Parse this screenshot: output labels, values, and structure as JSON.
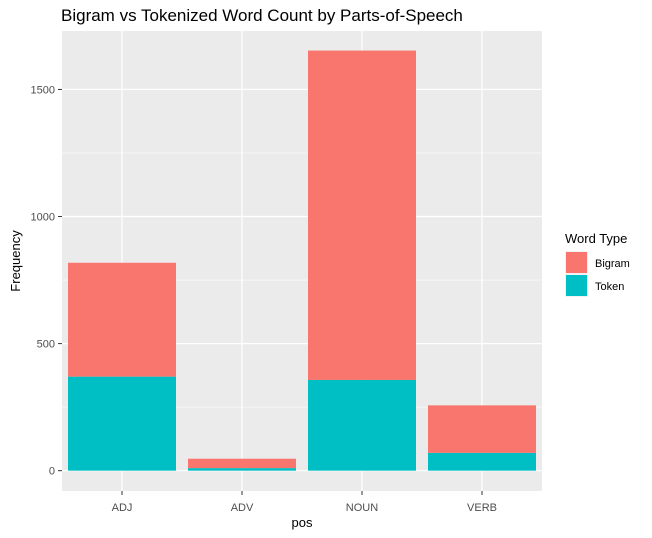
{
  "chart_data": {
    "type": "bar",
    "stacked": true,
    "title": "Bigram vs Tokenized Word Count by Parts-of-Speech",
    "xlabel": "pos",
    "ylabel": "Frequency",
    "categories": [
      "ADJ",
      "ADV",
      "NOUN",
      "VERB"
    ],
    "series": [
      {
        "name": "Bigram",
        "color": "#F8766D",
        "values": [
          448,
          37,
          1296,
          187
        ]
      },
      {
        "name": "Token",
        "color": "#00BFC4",
        "values": [
          370,
          10,
          357,
          70
        ]
      }
    ],
    "ylim": [
      -80,
      1730
    ],
    "yticks": [
      0,
      500,
      1000,
      1500
    ],
    "legend": {
      "title": "Word Type",
      "position": "right"
    },
    "grid": true,
    "panel_background": "#EBEBEB"
  }
}
